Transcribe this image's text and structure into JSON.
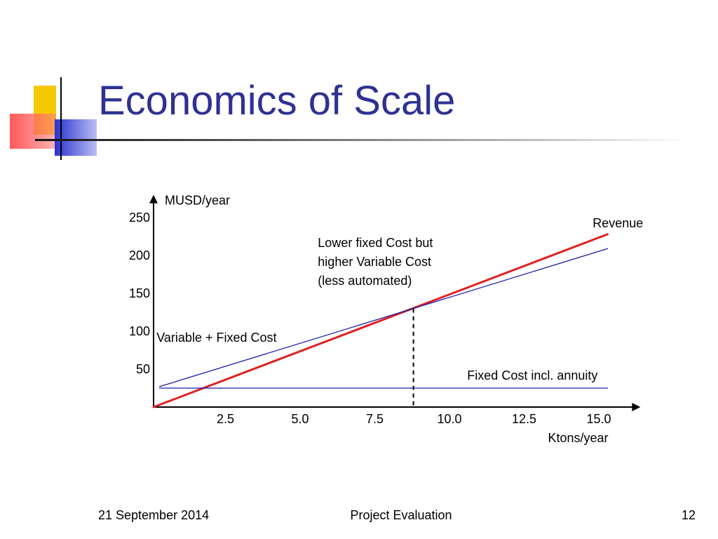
{
  "slide": {
    "title": "Economics of Scale",
    "footer": {
      "date": "21 September 2014",
      "center": "Project Evaluation",
      "page": "12"
    }
  },
  "chart_data": {
    "type": "line",
    "ylabel": "MUSD/year",
    "xlabel": "Ktons/year",
    "xlim": [
      0,
      16.3
    ],
    "ylim": [
      0,
      280
    ],
    "x_ticks": [
      "2.5",
      "5.0",
      "7.5",
      "10.0",
      "12.5",
      "15.0"
    ],
    "x_tick_values": [
      2.5,
      5.0,
      7.5,
      10.0,
      12.5,
      15.0
    ],
    "y_ticks": [
      "50",
      "100",
      "150",
      "200",
      "250"
    ],
    "y_tick_values": [
      50,
      100,
      150,
      200,
      250
    ],
    "series": [
      {
        "name": "Revenue",
        "color": "#e02020",
        "x": [
          0,
          15.2
        ],
        "y": [
          0,
          228
        ]
      },
      {
        "name": "Variable + Fixed Cost",
        "color": "#1a1aaa",
        "x": [
          0.2,
          15.2
        ],
        "y": [
          27,
          209
        ]
      },
      {
        "name": "Fixed Cost incl. annuity",
        "color": "#1a1aaa",
        "x": [
          0.2,
          15.2
        ],
        "y": [
          25,
          25
        ]
      }
    ],
    "break_even": {
      "x": 8.7,
      "y": 130
    },
    "annotations": [
      {
        "text": "Revenue",
        "x": 14.7,
        "y": 237
      },
      {
        "text": "Lower fixed Cost but",
        "x": 5.5,
        "y": 211
      },
      {
        "text": "higher Variable Cost",
        "x": 5.5,
        "y": 186
      },
      {
        "text": " (less automated)",
        "x": 5.5,
        "y": 161
      },
      {
        "text": "Variable + Fixed Cost",
        "x": 0.1,
        "y": 86
      },
      {
        "text": "Fixed Cost incl. annuity",
        "x": 10.5,
        "y": 36
      }
    ],
    "grid": false,
    "legend": "none"
  }
}
